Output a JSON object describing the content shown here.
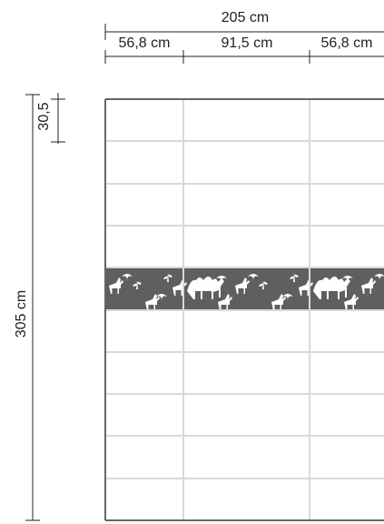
{
  "dimensions": {
    "total_width": "205 cm",
    "segment_left": "56,8 cm",
    "segment_middle": "91,5 cm",
    "segment_right": "56,8 cm",
    "row_height": "30,5",
    "total_height": "305 cm"
  },
  "colors": {
    "frame": "#666666",
    "grid": "#d9d9d9",
    "border_band": "#5f5f5f",
    "dimension_lines": "#222222"
  },
  "panel": {
    "columns": 3,
    "rows": 10,
    "decorative_band_row": 5,
    "band_motif": "animal-silhouette-pattern"
  }
}
